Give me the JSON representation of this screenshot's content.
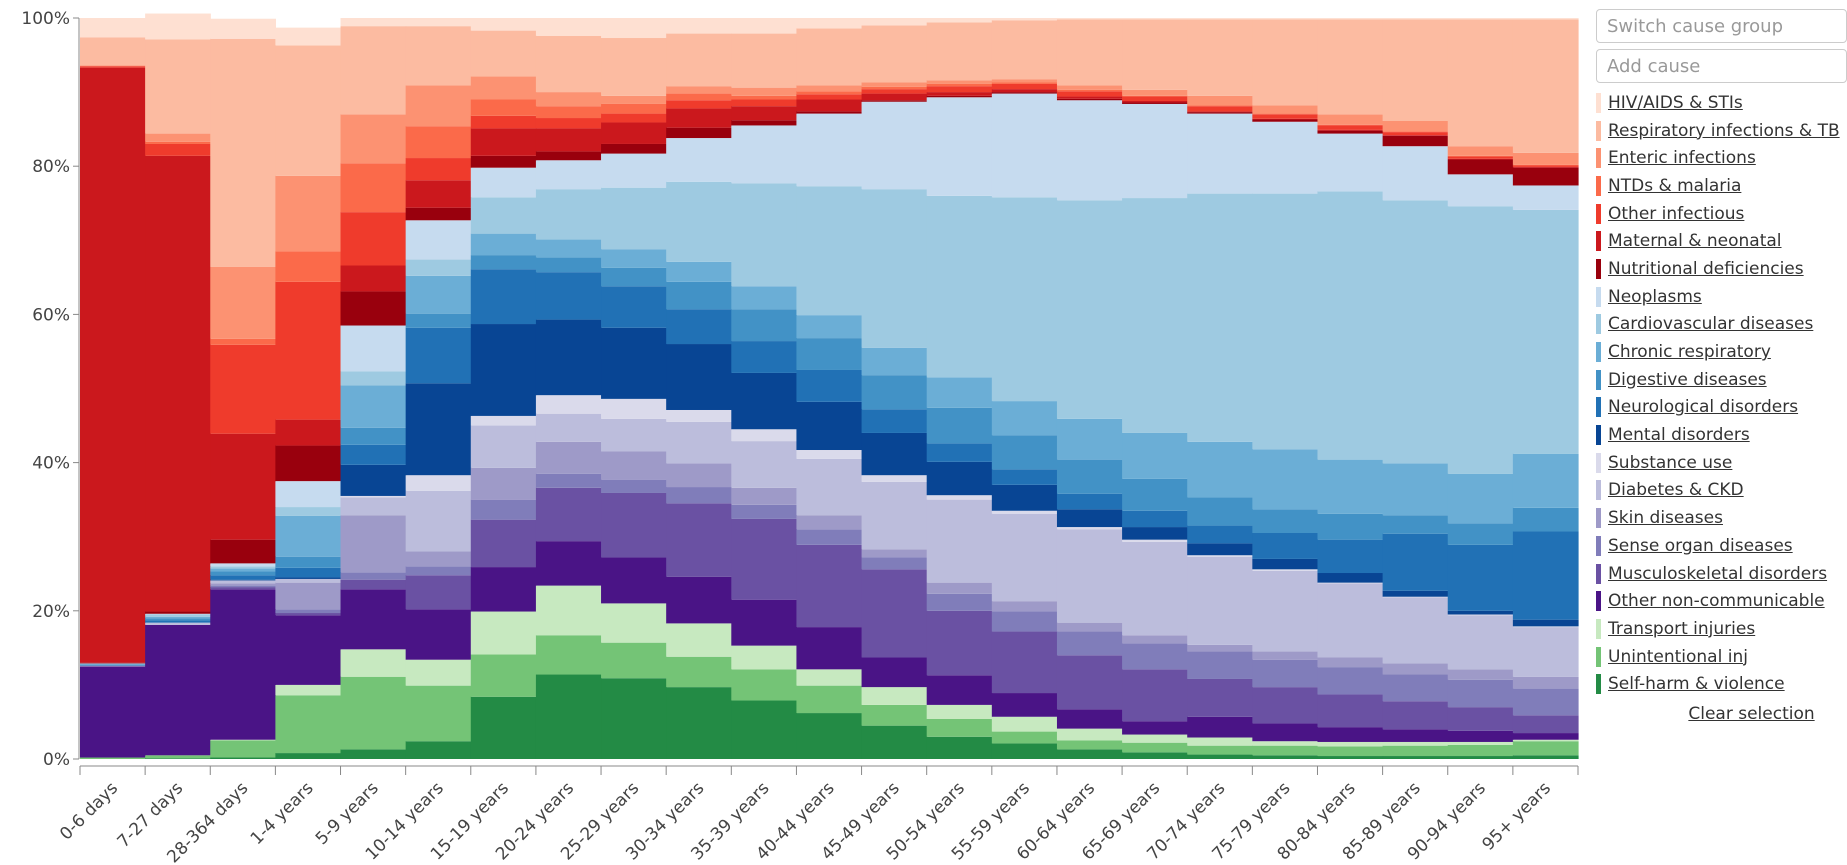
{
  "chart_data": {
    "type": "stacked-step",
    "categories": [
      "0-6 days",
      "7-27 days",
      "28-364 days",
      "1-4 years",
      "5-9 years",
      "10-14 years",
      "15-19 years",
      "20-24 years",
      "25-29 years",
      "30-34 years",
      "35-39 years",
      "40-44 years",
      "45-49 years",
      "50-54 years",
      "55-59 years",
      "60-64 years",
      "65-69 years",
      "70-74 years",
      "75-79 years",
      "80-84 years",
      "85-89 years",
      "90-94 years",
      "95+ years"
    ],
    "ylim": [
      0,
      100
    ],
    "yticks": [
      {
        "value": 0,
        "label": "0%"
      },
      {
        "value": 20,
        "label": "20%"
      },
      {
        "value": 40,
        "label": "40%"
      },
      {
        "value": 60,
        "label": "60%"
      },
      {
        "value": 80,
        "label": "80%"
      },
      {
        "value": 100,
        "label": "100%"
      }
    ],
    "series": [
      {
        "name": "HIV/AIDS & STIs",
        "color": "#fee0d2",
        "values": [
          2.6,
          3.5,
          2.7,
          2.4,
          1.1,
          1.1,
          1.7,
          2.4,
          2.7,
          2.1,
          2.1,
          1.4,
          1.0,
          0.6,
          0.3,
          0.2,
          0.2,
          0.2,
          0.2,
          0.2,
          0.2,
          0.2,
          0.2
        ]
      },
      {
        "name": "Respiratory infections & TB",
        "color": "#fcbba1",
        "values": [
          3.8,
          12.7,
          30.8,
          17.6,
          11.9,
          8.0,
          6.2,
          7.6,
          7.8,
          7.1,
          7.3,
          7.7,
          7.7,
          7.8,
          8.0,
          8.9,
          9.5,
          10.3,
          11.6,
          12.8,
          13.7,
          17.1,
          18.0
        ]
      },
      {
        "name": "Enteric infections",
        "color": "#fc9272",
        "values": [
          0.1,
          1.1,
          9.7,
          10.2,
          6.6,
          5.5,
          3.1,
          1.9,
          1.1,
          1.0,
          1.1,
          0.8,
          0.6,
          0.5,
          0.4,
          0.6,
          0.8,
          1.3,
          1.1,
          1.4,
          1.4,
          1.3,
          1.6
        ]
      },
      {
        "name": "NTDs & malaria",
        "color": "#fb6a4a",
        "values": [
          0,
          0.3,
          0.8,
          4.1,
          6.6,
          4.3,
          2.2,
          1.6,
          1.3,
          0.9,
          0.5,
          0.4,
          0.3,
          0.3,
          0.2,
          0.2,
          0.1,
          0.1,
          0.1,
          0.1,
          0.1,
          0.1,
          0.1
        ]
      },
      {
        "name": "Other infectious",
        "color": "#ef3b2c",
        "values": [
          0.2,
          1.6,
          12.0,
          18.6,
          7.2,
          3.0,
          1.7,
          1.4,
          1.2,
          1.1,
          0.9,
          0.7,
          0.6,
          0.8,
          0.7,
          0.7,
          0.6,
          0.7,
          0.6,
          0.6,
          0.4,
          0.3,
          0.2
        ]
      },
      {
        "name": "Maternal & neonatal",
        "color": "#cb181d",
        "values": [
          80.3,
          61.5,
          14.3,
          3.5,
          3.5,
          3.7,
          3.7,
          3.1,
          2.9,
          2.6,
          1.9,
          1.6,
          0.9,
          0.5,
          0.4,
          0.3,
          0.2,
          0.1,
          0.1,
          0.1,
          0.1,
          0.1,
          0.1
        ]
      },
      {
        "name": "Nutritional deficiencies",
        "color": "#99000d",
        "values": [
          0.1,
          0.3,
          3.2,
          4.8,
          4.6,
          1.7,
          1.6,
          1.2,
          1.3,
          1.4,
          0.7,
          0.3,
          0.2,
          0.2,
          0.2,
          0.2,
          0.2,
          0.2,
          0.3,
          0.4,
          1.4,
          2.0,
          2.4
        ]
      },
      {
        "name": "Neoplasms",
        "color": "#c6dbef",
        "values": [
          0,
          0.1,
          0.4,
          3.5,
          6.2,
          5.3,
          4.0,
          3.9,
          4.6,
          5.9,
          7.8,
          9.8,
          11.8,
          13.3,
          14.0,
          13.5,
          12.7,
          10.8,
          9.7,
          7.8,
          7.3,
          4.3,
          3.3
        ]
      },
      {
        "name": "Cardiovascular diseases",
        "color": "#9ecae1",
        "values": [
          0.1,
          0.3,
          0.3,
          1.2,
          1.9,
          2.2,
          4.9,
          6.8,
          8.3,
          10.8,
          13.9,
          17.4,
          21.4,
          24.5,
          27.5,
          29.5,
          31.7,
          33.5,
          34.5,
          36.2,
          35.5,
          36.1,
          32.9
        ]
      },
      {
        "name": "Chronic respiratory",
        "color": "#6baed6",
        "values": [
          0,
          0.2,
          0.4,
          5.5,
          5.7,
          5.1,
          2.9,
          2.4,
          2.5,
          2.7,
          3.1,
          3.1,
          3.7,
          4.1,
          4.6,
          5.5,
          6.2,
          7.5,
          8.1,
          7.3,
          7.0,
          6.7,
          7.3
        ]
      },
      {
        "name": "Digestive diseases",
        "color": "#4292c6",
        "values": [
          0.1,
          0.3,
          0.5,
          1.5,
          2.3,
          1.9,
          1.9,
          2.0,
          2.5,
          3.7,
          4.3,
          4.3,
          4.6,
          4.8,
          4.6,
          4.6,
          4.3,
          3.8,
          3.2,
          3.5,
          2.5,
          2.9,
          3.2
        ]
      },
      {
        "name": "Neurological disorders",
        "color": "#2171b5",
        "values": [
          0.1,
          0.3,
          0.6,
          1.3,
          2.7,
          7.5,
          7.4,
          6.4,
          5.6,
          4.7,
          4.3,
          4.3,
          3.2,
          2.5,
          2.1,
          2.1,
          2.2,
          2.4,
          3.5,
          4.5,
          7.7,
          8.9,
          11.9
        ]
      },
      {
        "name": "Mental disorders",
        "color": "#084594",
        "values": [
          0,
          0,
          0.1,
          0.2,
          4.2,
          12.4,
          12.4,
          10.2,
          9.6,
          8.9,
          7.6,
          6.5,
          5.7,
          4.5,
          3.5,
          2.4,
          1.7,
          1.6,
          1.4,
          1.3,
          0.8,
          0.5,
          0.9
        ]
      },
      {
        "name": "Substance use",
        "color": "#dadaeb",
        "values": [
          0,
          0,
          0,
          0,
          0.2,
          2.1,
          1.3,
          2.5,
          2.7,
          1.6,
          1.6,
          1.2,
          0.9,
          0.6,
          0.4,
          0.3,
          0.3,
          0.2,
          0.2,
          0.1,
          0.1,
          0.1,
          0.1
        ]
      },
      {
        "name": "Diabetes & CKD",
        "color": "#bcbddc",
        "values": [
          0.1,
          0.3,
          0.4,
          0.5,
          2.4,
          8.2,
          5.7,
          3.8,
          4.4,
          5.6,
          6.3,
          7.6,
          9.1,
          11.2,
          11.8,
          12.6,
          12.6,
          11.9,
          10.9,
          10.0,
          8.9,
          7.3,
          6.7
        ]
      },
      {
        "name": "Skin diseases",
        "color": "#9e9ac8",
        "values": [
          0,
          0,
          0.3,
          3.6,
          7.7,
          2.0,
          4.3,
          4.3,
          3.8,
          3.2,
          2.3,
          1.9,
          1.1,
          1.5,
          1.4,
          1.2,
          1.1,
          0.9,
          1.1,
          1.3,
          1.5,
          1.4,
          1.6
        ]
      },
      {
        "name": "Sense organ diseases",
        "color": "#807dba",
        "values": [
          0,
          0,
          0.2,
          0.5,
          1.0,
          1.2,
          2.7,
          1.9,
          1.8,
          2.2,
          1.9,
          2.1,
          1.6,
          2.3,
          2.7,
          3.2,
          3.5,
          3.7,
          3.7,
          3.7,
          3.6,
          3.7,
          3.6
        ]
      },
      {
        "name": "Musculoskeletal disorders",
        "color": "#6a51a3",
        "values": [
          0,
          0,
          0.3,
          0.3,
          1.3,
          4.6,
          6.4,
          7.2,
          8.7,
          9.9,
          10.9,
          11.1,
          11.9,
          8.7,
          8.3,
          7.3,
          7.0,
          5.1,
          4.9,
          4.4,
          3.8,
          3.2,
          2.4
        ]
      },
      {
        "name": "Other non-communicable",
        "color": "#4a1486",
        "values": [
          12.3,
          17.6,
          20.3,
          9.4,
          8.1,
          6.8,
          6.0,
          6.0,
          6.2,
          6.3,
          6.2,
          5.7,
          4.0,
          4.0,
          3.2,
          2.6,
          1.8,
          2.8,
          2.4,
          2.0,
          1.7,
          1.5,
          0.9
        ]
      },
      {
        "name": "Transport injuries",
        "color": "#c7e9c0",
        "values": [
          0,
          0,
          0.1,
          1.4,
          3.7,
          3.5,
          5.8,
          6.7,
          5.3,
          4.5,
          3.2,
          2.2,
          2.4,
          1.9,
          2.0,
          1.6,
          1.1,
          1.1,
          0.6,
          0.6,
          0.5,
          0.4,
          0.2
        ]
      },
      {
        "name": "Unintentional inj",
        "color": "#74c476",
        "values": [
          0.2,
          0.4,
          2.3,
          7.8,
          9.8,
          7.5,
          5.7,
          5.3,
          4.8,
          4.1,
          4.2,
          3.7,
          2.8,
          2.4,
          1.6,
          1.2,
          1.3,
          1.2,
          1.3,
          1.3,
          1.4,
          1.5,
          1.9
        ]
      },
      {
        "name": "Self-harm & violence",
        "color": "#238b45",
        "values": [
          0,
          0.1,
          0.2,
          0.8,
          1.3,
          2.4,
          8.4,
          11.4,
          10.9,
          9.7,
          7.9,
          6.2,
          4.5,
          3.0,
          2.1,
          1.3,
          0.9,
          0.6,
          0.5,
          0.4,
          0.4,
          0.4,
          0.5
        ]
      }
    ]
  },
  "controls": {
    "switch_placeholder": "Switch cause group",
    "add_placeholder": "Add cause",
    "clear": "Clear selection"
  }
}
